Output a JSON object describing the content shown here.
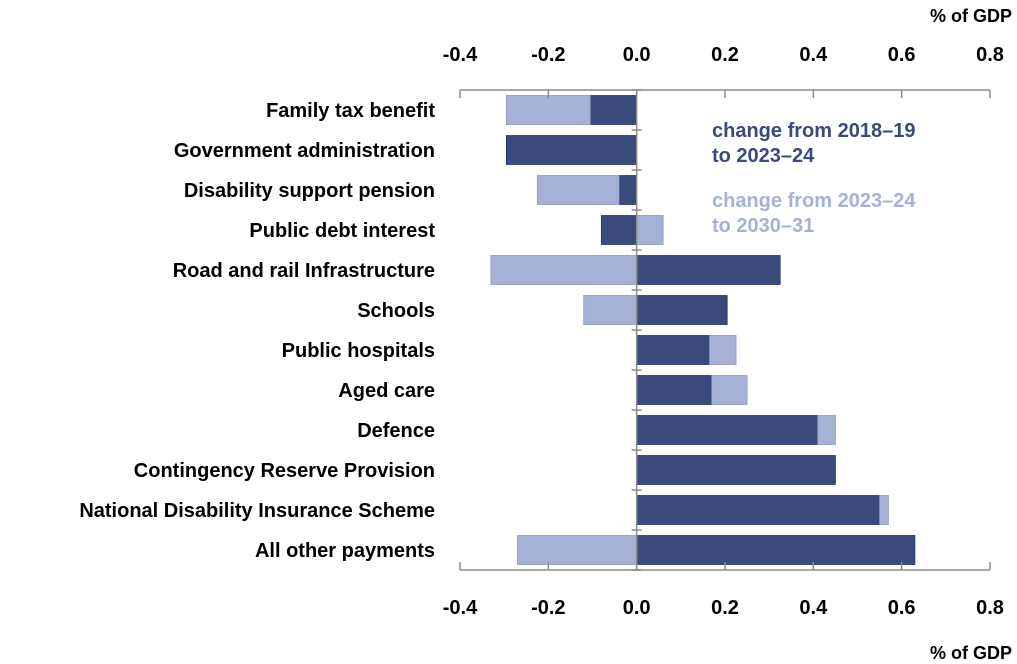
{
  "chart_data": {
    "type": "bar",
    "orientation": "horizontal",
    "stacked": true,
    "categories": [
      "Family tax benefit",
      "Government administration",
      "Disability support pension",
      "Public debt interest",
      "Road and rail Infrastructure",
      "Schools",
      "Public hospitals",
      "Aged care",
      "Defence",
      "Contingency Reserve Provision",
      "National Disability Insurance Scheme",
      "All other payments"
    ],
    "series": [
      {
        "name": "change from 2018–19 to 2023–24",
        "color": "#3b4a7d",
        "values": [
          -0.105,
          -0.295,
          -0.04,
          -0.08,
          0.325,
          0.205,
          0.165,
          0.17,
          0.41,
          0.45,
          0.55,
          0.63
        ]
      },
      {
        "name": "change from 2023–24 to 2030–31",
        "color": "#a7b1d6",
        "values": [
          -0.19,
          0.0,
          -0.185,
          0.06,
          -0.33,
          -0.12,
          0.06,
          0.08,
          0.04,
          0.0,
          0.02,
          -0.27
        ]
      }
    ],
    "xlim": [
      -0.4,
      0.8
    ],
    "xticks": [
      "-0.4",
      "-0.2",
      "0.0",
      "0.2",
      "0.4",
      "0.6",
      "0.8"
    ],
    "xlabel_top": "% of GDP",
    "xlabel_bottom": "% of GDP",
    "legend": {
      "placement": "top-right",
      "entries": [
        {
          "line1": "change from 2018–19",
          "line2": "to 2023–24",
          "color": "#3b4a7d"
        },
        {
          "line1": "change from 2023–24",
          "line2": "to 2030–31",
          "color": "#a7b1d6"
        }
      ]
    },
    "grid": false
  }
}
